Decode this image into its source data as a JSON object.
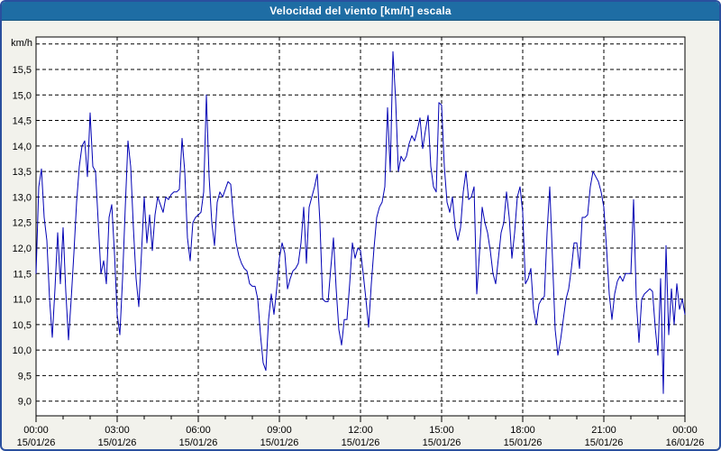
{
  "window": {
    "title": "Velocidad del viento [km/h] escala",
    "title_bar_color": "#1e6da4",
    "border_color": "#2a4f9e",
    "background_color": "#f2f2ec"
  },
  "chart_data": {
    "type": "line",
    "title": "Velocidad del viento [km/h] escala",
    "plot_background": "#ffffff",
    "grid": "dashed-black",
    "legend": "none",
    "y_axis": {
      "unit_label": "km/h",
      "tick_labels": [
        "15,5",
        "15,0",
        "14,5",
        "14,0",
        "13,5",
        "13,0",
        "12,5",
        "12,0",
        "11,5",
        "11,0",
        "10,5",
        "10,0",
        "9,5",
        "9,0"
      ],
      "tick_values": [
        15.5,
        15.0,
        14.5,
        14.0,
        13.5,
        13.0,
        12.5,
        12.0,
        11.5,
        11.0,
        10.5,
        10.0,
        9.5,
        9.0
      ],
      "gridline_values": [
        16.0,
        15.5,
        15.0,
        14.5,
        14.0,
        13.5,
        13.0,
        12.5,
        12.0,
        11.5,
        11.0,
        10.5,
        10.0,
        9.5,
        9.0
      ],
      "display_range": [
        8.8,
        16.2
      ]
    },
    "x_axis": {
      "range_hours": [
        0,
        24
      ],
      "major_tick_every_hours": 3,
      "minor_tick_every_hours": 1,
      "tick_labels": [
        {
          "time": "00:00",
          "date": "15/01/26"
        },
        {
          "time": "03:00",
          "date": "15/01/26"
        },
        {
          "time": "06:00",
          "date": "15/01/26"
        },
        {
          "time": "09:00",
          "date": "15/01/26"
        },
        {
          "time": "12:00",
          "date": "15/01/26"
        },
        {
          "time": "15:00",
          "date": "15/01/26"
        },
        {
          "time": "18:00",
          "date": "15/01/26"
        },
        {
          "time": "21:00",
          "date": "15/01/26"
        },
        {
          "time": "00:00",
          "date": "16/01/26"
        }
      ]
    },
    "series": [
      {
        "name": "Velocidad del viento",
        "color": "#0000b4",
        "start_hour": 0,
        "sample_interval_hours": 0.1,
        "values": [
          11.5,
          13.2,
          13.55,
          12.6,
          12.15,
          11.0,
          10.25,
          11.2,
          12.3,
          11.3,
          12.4,
          11.15,
          10.2,
          11.0,
          11.9,
          12.9,
          13.6,
          14.0,
          14.1,
          13.4,
          14.65,
          13.6,
          13.5,
          12.5,
          11.5,
          11.75,
          11.3,
          12.6,
          12.85,
          11.9,
          10.7,
          10.3,
          11.4,
          12.8,
          14.1,
          13.6,
          12.4,
          11.4,
          10.85,
          11.9,
          13.0,
          12.1,
          12.65,
          11.95,
          12.65,
          13.0,
          12.85,
          12.7,
          13.0,
          12.95,
          13.05,
          13.1,
          13.1,
          13.15,
          14.15,
          13.5,
          12.2,
          11.75,
          12.5,
          12.6,
          12.65,
          12.7,
          13.1,
          15.0,
          13.4,
          12.5,
          12.05,
          12.9,
          13.1,
          13.0,
          13.15,
          13.3,
          13.25,
          12.6,
          12.1,
          11.85,
          11.7,
          11.6,
          11.55,
          11.3,
          11.25,
          11.25,
          11.0,
          10.3,
          9.75,
          9.6,
          10.6,
          11.1,
          10.7,
          11.2,
          11.8,
          12.1,
          11.9,
          11.2,
          11.4,
          11.55,
          11.6,
          11.7,
          12.1,
          12.8,
          11.7,
          12.8,
          13.0,
          13.2,
          13.45,
          12.5,
          11.0,
          10.95,
          10.95,
          11.6,
          12.2,
          11.2,
          10.4,
          10.1,
          10.6,
          10.6,
          11.3,
          12.1,
          11.8,
          12.0,
          11.95,
          11.5,
          11.0,
          10.45,
          11.3,
          12.0,
          12.6,
          12.8,
          12.9,
          13.2,
          14.75,
          13.5,
          15.85,
          14.9,
          13.5,
          13.8,
          13.7,
          13.8,
          14.05,
          14.2,
          14.1,
          14.3,
          14.55,
          13.95,
          14.3,
          14.6,
          13.6,
          13.2,
          13.1,
          14.85,
          14.8,
          13.6,
          12.9,
          12.7,
          13.0,
          12.4,
          12.15,
          12.4,
          13.1,
          13.5,
          12.95,
          13.0,
          13.2,
          11.1,
          11.9,
          12.8,
          12.5,
          12.3,
          11.95,
          11.5,
          11.3,
          11.8,
          12.3,
          12.5,
          13.1,
          12.6,
          11.8,
          12.3,
          13.0,
          13.2,
          12.7,
          11.3,
          11.4,
          11.6,
          10.8,
          10.5,
          10.9,
          11.0,
          11.05,
          12.3,
          13.2,
          11.8,
          10.4,
          9.9,
          10.2,
          10.6,
          11.0,
          11.2,
          11.6,
          12.1,
          12.1,
          11.6,
          12.6,
          12.6,
          12.65,
          13.2,
          13.5,
          13.4,
          13.3,
          13.1,
          12.8,
          12.0,
          11.1,
          10.6,
          11.1,
          11.35,
          11.45,
          11.35,
          11.5,
          11.5,
          11.5,
          12.95,
          11.0,
          10.15,
          11.0,
          11.1,
          11.15,
          11.2,
          11.15,
          10.45,
          9.9,
          11.4,
          9.15,
          12.05,
          10.3,
          11.2,
          10.5,
          11.3,
          10.8,
          11.0,
          10.7
        ]
      }
    ]
  }
}
